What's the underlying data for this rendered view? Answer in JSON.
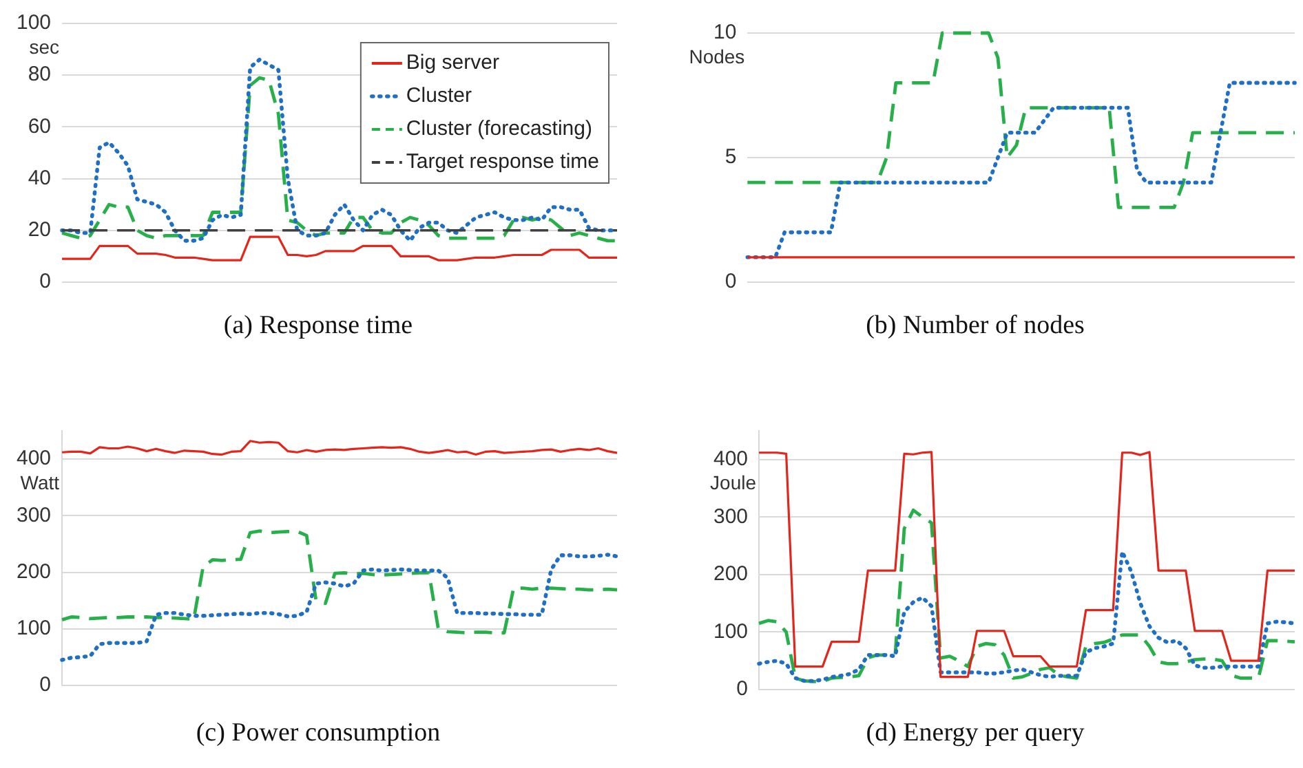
{
  "chart_data": [
    {
      "type": "line",
      "title": "(a) Response time",
      "ylabel": "sec",
      "categories": [
        null,
        null,
        null,
        null,
        null,
        null,
        null,
        null,
        null,
        null,
        null,
        null,
        null,
        null,
        null,
        null,
        null,
        null,
        null,
        null,
        null,
        null,
        null,
        null,
        null,
        null,
        null,
        null,
        null,
        null,
        null,
        null,
        null,
        null,
        null,
        null,
        null,
        null,
        null,
        null,
        null,
        null,
        null,
        null,
        null,
        null,
        null,
        null,
        null,
        null,
        null,
        null,
        null,
        null,
        null,
        null,
        null,
        null,
        null,
        null
      ],
      "ylim": [
        0,
        100
      ],
      "yticks": [
        0,
        20,
        40,
        60,
        80,
        100
      ],
      "grid": "y",
      "tick_labels": "y",
      "legend": "top right",
      "series": [
        {
          "name": "Big server",
          "color": "#e3261c",
          "line_style": "solid",
          "values": [
            9,
            9,
            9,
            9,
            14,
            14,
            14,
            14,
            11,
            11,
            11,
            10.5,
            9.5,
            9.5,
            9.5,
            9,
            8.5,
            8.5,
            8.5,
            8.5,
            17.5,
            17.5,
            17.5,
            17.5,
            10.5,
            10.5,
            10,
            10.5,
            12,
            12,
            12,
            12,
            14,
            14,
            14,
            14,
            10,
            10,
            10,
            10,
            8.5,
            8.5,
            8.5,
            9,
            9.5,
            9.5,
            9.5,
            10,
            10.5,
            10.5,
            10.5,
            10.5,
            12.5,
            12.5,
            12.5,
            12.5,
            9.5,
            9.5,
            9.5,
            9.5
          ]
        },
        {
          "name": "Cluster",
          "color": "#1f6fc5",
          "line_style": "dotted",
          "values": [
            20,
            20,
            19,
            19,
            52,
            54,
            50,
            45,
            32,
            31,
            30,
            27,
            20,
            16,
            16,
            17,
            24,
            26,
            25,
            26,
            83,
            86,
            84,
            82,
            40,
            20,
            18,
            18,
            19,
            26,
            30,
            24,
            20,
            26,
            28,
            26,
            20,
            16,
            21,
            23,
            23,
            20,
            19,
            22,
            25,
            26,
            27,
            25,
            24,
            24,
            25,
            24,
            29,
            29,
            28,
            28,
            21,
            20,
            20,
            20
          ]
        },
        {
          "name": "Cluster (forecasting)",
          "color": "#27b04a",
          "line_style": "dashed",
          "values": [
            19,
            18,
            17,
            18,
            24,
            30,
            29,
            29,
            20,
            18,
            17,
            18,
            18,
            18,
            18,
            18,
            27,
            27,
            27,
            27,
            76,
            79,
            78,
            65,
            24,
            23,
            20,
            18,
            19,
            19,
            19,
            25,
            25,
            20,
            19,
            19,
            23,
            25,
            24,
            22,
            18,
            17,
            17,
            17,
            17,
            17,
            17,
            18,
            24,
            25,
            24,
            25,
            24,
            21,
            18,
            19,
            18,
            17,
            16,
            16
          ]
        }
      ],
      "ref_lines": [
        {
          "axis": "y",
          "value": 20,
          "label": "Target response time",
          "color": "#404040",
          "line_style": "dashed"
        }
      ]
    },
    {
      "type": "line",
      "title": "(b) Number of nodes",
      "ylabel": "Nodes",
      "categories": [
        null,
        null,
        null,
        null,
        null,
        null,
        null,
        null,
        null,
        null,
        null,
        null,
        null,
        null,
        null,
        null,
        null,
        null,
        null,
        null,
        null,
        null,
        null,
        null,
        null,
        null,
        null,
        null,
        null,
        null,
        null,
        null,
        null,
        null,
        null,
        null,
        null,
        null,
        null,
        null,
        null,
        null,
        null,
        null,
        null,
        null,
        null,
        null,
        null,
        null,
        null,
        null,
        null,
        null,
        null,
        null,
        null,
        null,
        null,
        null
      ],
      "ylim": [
        0,
        10
      ],
      "yticks": [
        0,
        5,
        10
      ],
      "grid": "y",
      "tick_labels": "y",
      "series": [
        {
          "color": "#e3261c",
          "line_style": "solid",
          "values": [
            1,
            1,
            1,
            1,
            1,
            1,
            1,
            1,
            1,
            1,
            1,
            1,
            1,
            1,
            1,
            1,
            1,
            1,
            1,
            1,
            1,
            1,
            1,
            1,
            1,
            1,
            1,
            1,
            1,
            1,
            1,
            1,
            1,
            1,
            1,
            1,
            1,
            1,
            1,
            1,
            1,
            1,
            1,
            1,
            1,
            1,
            1,
            1,
            1,
            1,
            1,
            1,
            1,
            1,
            1,
            1,
            1,
            1,
            1,
            1
          ]
        },
        {
          "color": "#1f6fc5",
          "line_style": "dotted",
          "values": [
            1,
            1,
            1,
            1,
            2,
            2,
            2,
            2,
            2,
            2,
            4,
            4,
            4,
            4,
            4,
            4,
            4,
            4,
            4,
            4,
            4,
            4,
            4,
            4,
            4,
            4,
            4,
            5,
            6,
            6,
            6,
            6,
            6.5,
            7,
            7,
            7,
            7,
            7,
            7,
            7,
            7,
            7,
            4.5,
            4,
            4,
            4,
            4,
            4,
            4,
            4,
            4,
            6,
            8,
            8,
            8,
            8,
            8,
            8,
            8,
            8
          ]
        },
        {
          "color": "#27b04a",
          "line_style": "dashed",
          "values": [
            4,
            4,
            4,
            4,
            4,
            4,
            4,
            4,
            4,
            4,
            4,
            4,
            4,
            4,
            4,
            5,
            8,
            8,
            8,
            8,
            8,
            10,
            10,
            10,
            10,
            10,
            10,
            9,
            5,
            5.5,
            7,
            7,
            7,
            7,
            7,
            7,
            7,
            7,
            7,
            7,
            3,
            3,
            3,
            3,
            3,
            3,
            3,
            4,
            6,
            6,
            6,
            6,
            6,
            6,
            6,
            6,
            6,
            6,
            6,
            6
          ]
        }
      ]
    },
    {
      "type": "line",
      "title": "(c) Power consumption",
      "ylabel": "Watt",
      "categories": [
        null,
        null,
        null,
        null,
        null,
        null,
        null,
        null,
        null,
        null,
        null,
        null,
        null,
        null,
        null,
        null,
        null,
        null,
        null,
        null,
        null,
        null,
        null,
        null,
        null,
        null,
        null,
        null,
        null,
        null,
        null,
        null,
        null,
        null,
        null,
        null,
        null,
        null,
        null,
        null,
        null,
        null,
        null,
        null,
        null,
        null,
        null,
        null,
        null,
        null,
        null,
        null,
        null,
        null,
        null,
        null,
        null,
        null,
        null,
        null
      ],
      "ylim": [
        0,
        450
      ],
      "yticks": [
        0,
        100,
        200,
        300,
        400
      ],
      "grid": "y",
      "tick_labels": "y",
      "series": [
        {
          "color": "#e3261c",
          "line_style": "solid",
          "values": [
            412,
            413,
            413,
            410,
            421,
            419,
            419,
            422,
            419,
            414,
            418,
            414,
            411,
            415,
            414,
            413,
            409,
            408,
            413,
            414,
            432,
            429,
            430,
            429,
            414,
            412,
            416,
            413,
            416,
            417,
            416,
            418,
            419,
            420,
            421,
            420,
            421,
            418,
            413,
            411,
            413,
            416,
            412,
            413,
            408,
            413,
            414,
            411,
            412,
            413,
            414,
            416,
            417,
            413,
            416,
            418,
            416,
            419,
            414,
            411
          ]
        },
        {
          "color": "#1f6fc5",
          "line_style": "dotted",
          "values": [
            45,
            49,
            50,
            52,
            73,
            75,
            75,
            75,
            75,
            78,
            125,
            128,
            128,
            125,
            123,
            123,
            124,
            125,
            126,
            127,
            126,
            128,
            128,
            126,
            122,
            123,
            130,
            180,
            182,
            180,
            175,
            180,
            203,
            205,
            203,
            204,
            205,
            204,
            203,
            203,
            203,
            190,
            128,
            128,
            128,
            127,
            127,
            126,
            126,
            125,
            125,
            125,
            205,
            230,
            230,
            228,
            228,
            229,
            231,
            228
          ]
        },
        {
          "color": "#27b04a",
          "line_style": "dashed",
          "values": [
            116,
            121,
            120,
            118,
            119,
            120,
            120,
            121,
            121,
            121,
            120,
            120,
            119,
            118,
            117,
            210,
            222,
            221,
            222,
            223,
            270,
            273,
            270,
            271,
            272,
            272,
            265,
            150,
            145,
            198,
            199,
            197,
            198,
            196,
            195,
            196,
            197,
            198,
            199,
            199,
            100,
            95,
            94,
            93,
            94,
            94,
            93,
            93,
            172,
            172,
            170,
            172,
            172,
            171,
            170,
            170,
            169,
            169,
            170,
            169
          ]
        }
      ]
    },
    {
      "type": "line",
      "title": "(d) Energy per query",
      "ylabel": "Joule",
      "categories": [
        null,
        null,
        null,
        null,
        null,
        null,
        null,
        null,
        null,
        null,
        null,
        null,
        null,
        null,
        null,
        null,
        null,
        null,
        null,
        null,
        null,
        null,
        null,
        null,
        null,
        null,
        null,
        null,
        null,
        null,
        null,
        null,
        null,
        null,
        null,
        null,
        null,
        null,
        null,
        null,
        null,
        null,
        null,
        null,
        null,
        null,
        null,
        null,
        null,
        null,
        null,
        null,
        null,
        null,
        null,
        null,
        null,
        null,
        null,
        null
      ],
      "ylim": [
        0,
        450
      ],
      "yticks": [
        0,
        100,
        200,
        300,
        400
      ],
      "grid": "y",
      "tick_labels": "y",
      "series": [
        {
          "color": "#e3261c",
          "line_style": "solid",
          "values": [
            412,
            412,
            412,
            410,
            40,
            40,
            40,
            40,
            83,
            83,
            83,
            83,
            207,
            207,
            207,
            207,
            410,
            409,
            412,
            413,
            22,
            22,
            22,
            22,
            102,
            102,
            102,
            102,
            58,
            58,
            58,
            58,
            40,
            40,
            40,
            40,
            138,
            138,
            138,
            138,
            412,
            412,
            408,
            413,
            207,
            207,
            207,
            207,
            102,
            102,
            102,
            102,
            50,
            50,
            50,
            50,
            207,
            207,
            207,
            207
          ]
        },
        {
          "color": "#1f6fc5",
          "line_style": "dotted",
          "values": [
            45,
            48,
            50,
            45,
            20,
            15,
            15,
            17,
            22,
            24,
            27,
            35,
            60,
            60,
            60,
            58,
            135,
            152,
            160,
            145,
            30,
            30,
            30,
            30,
            30,
            28,
            28,
            30,
            33,
            35,
            30,
            25,
            22,
            24,
            24,
            24,
            65,
            72,
            75,
            80,
            240,
            205,
            150,
            110,
            90,
            82,
            85,
            72,
            42,
            38,
            38,
            40,
            40,
            40,
            40,
            40,
            115,
            118,
            117,
            115
          ]
        },
        {
          "color": "#27b04a",
          "line_style": "dashed",
          "values": [
            115,
            120,
            118,
            100,
            20,
            15,
            14,
            14,
            20,
            21,
            22,
            24,
            55,
            60,
            60,
            60,
            280,
            312,
            300,
            290,
            55,
            58,
            50,
            40,
            75,
            80,
            78,
            60,
            20,
            22,
            28,
            35,
            38,
            25,
            22,
            20,
            75,
            80,
            82,
            88,
            95,
            95,
            95,
            75,
            48,
            45,
            45,
            48,
            52,
            53,
            53,
            50,
            25,
            20,
            20,
            20,
            85,
            85,
            84,
            83
          ]
        }
      ]
    }
  ]
}
